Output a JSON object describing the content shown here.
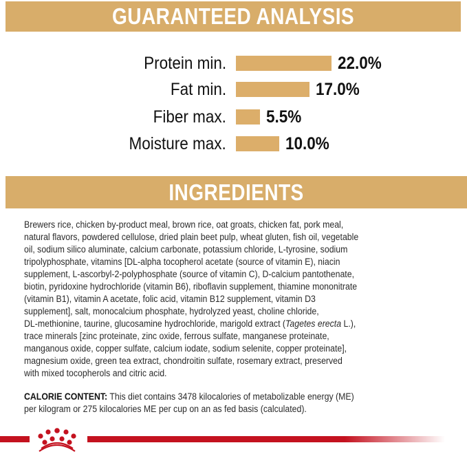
{
  "guaranteed_analysis": {
    "title": "GUARANTEED ANALYSIS",
    "rows": [
      {
        "label": "Protein min.",
        "value": "22.0%"
      },
      {
        "label": "Fat min.",
        "value": "17.0%"
      },
      {
        "label": "Fiber max.",
        "value": "5.5%"
      },
      {
        "label": "Moisture max.",
        "value": "10.0%"
      }
    ]
  },
  "chart_data": {
    "type": "bar",
    "orientation": "horizontal",
    "categories": [
      "Protein min.",
      "Fat min.",
      "Fiber max.",
      "Moisture max."
    ],
    "values": [
      22.0,
      17.0,
      5.5,
      10.0
    ],
    "unit": "%",
    "bar_color": "#dcae6a"
  },
  "ingredients": {
    "title": "INGREDIENTS",
    "lines": [
      "Brewers rice, chicken by-product meal, brown rice, oat groats, chicken fat, pork meal,",
      "natural flavors, powdered cellulose, dried plain beet pulp, wheat gluten, fish oil, vegetable",
      "oil, sodium silico aluminate, calcium carbonate, potassium chloride, L-tyrosine, sodium",
      "tripolyphosphate, vitamins [DL-alpha tocopherol acetate (source of vitamin E), niacin",
      "supplement, L-ascorbyl-2-polyphosphate (source of vitamin C), D-calcium pantothenate,",
      "biotin, pyridoxine hydrochloride (vitamin B6), riboflavin supplement, thiamine mononitrate",
      "(vitamin B1), vitamin A acetate, folic acid, vitamin B12 supplement, vitamin D3",
      "supplement], salt, monocalcium phosphate, hydrolyzed yeast, choline chloride,",
      "DL-methionine, taurine, glucosamine hydrochloride, marigold extract (",
      "trace minerals [zinc proteinate, zinc oxide, ferrous sulfate, manganese proteinate,",
      "manganous oxide, copper sulfate, calcium iodate, sodium selenite, copper proteinate],",
      "magnesium oxide, green tea extract, chondroitin sulfate, rosemary extract, preserved",
      "with mixed tocopherols and citric acid."
    ],
    "italic_part": "Tagetes erecta",
    "after_italic": " L.),"
  },
  "calorie_content": {
    "label": "CALORIE CONTENT:",
    "line1": " This diet contains 3478 kilocalories of metabolizable energy (ME)",
    "line2": "per kilogram or 275 kilocalories ME per cup on an as fed basis (calculated)."
  },
  "footer": {
    "logo_icon": "royal-canin-crown-logo",
    "accent_color": "#c4121f"
  }
}
